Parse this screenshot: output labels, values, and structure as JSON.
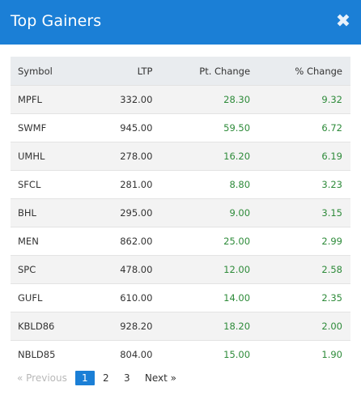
{
  "modal": {
    "title": "Top Gainers",
    "close_glyph": "✖"
  },
  "table": {
    "headers": {
      "symbol": "Symbol",
      "ltp": "LTP",
      "pt_change": "Pt. Change",
      "pct_change": "% Change"
    },
    "rows": [
      {
        "symbol": "MPFL",
        "ltp": "332.00",
        "pt_change": "28.30",
        "pct_change": "9.32"
      },
      {
        "symbol": "SWMF",
        "ltp": "945.00",
        "pt_change": "59.50",
        "pct_change": "6.72"
      },
      {
        "symbol": "UMHL",
        "ltp": "278.00",
        "pt_change": "16.20",
        "pct_change": "6.19"
      },
      {
        "symbol": "SFCL",
        "ltp": "281.00",
        "pt_change": "8.80",
        "pct_change": "3.23"
      },
      {
        "symbol": "BHL",
        "ltp": "295.00",
        "pt_change": "9.00",
        "pct_change": "3.15"
      },
      {
        "symbol": "MEN",
        "ltp": "862.00",
        "pt_change": "25.00",
        "pct_change": "2.99"
      },
      {
        "symbol": "SPC",
        "ltp": "478.00",
        "pt_change": "12.00",
        "pct_change": "2.58"
      },
      {
        "symbol": "GUFL",
        "ltp": "610.00",
        "pt_change": "14.00",
        "pct_change": "2.35"
      },
      {
        "symbol": "KBLD86",
        "ltp": "928.20",
        "pt_change": "18.20",
        "pct_change": "2.00"
      },
      {
        "symbol": "NBLD85",
        "ltp": "804.00",
        "pt_change": "15.00",
        "pct_change": "1.90"
      }
    ]
  },
  "pagination": {
    "previous": "«  Previous",
    "pages": [
      "1",
      "2",
      "3"
    ],
    "active_page": "1",
    "next": "Next  »"
  },
  "colors": {
    "header_bg": "#1b7fd6",
    "positive": "#2e8b3a",
    "table_header_bg": "#e9ecef",
    "stripe": "#f3f3f3"
  }
}
